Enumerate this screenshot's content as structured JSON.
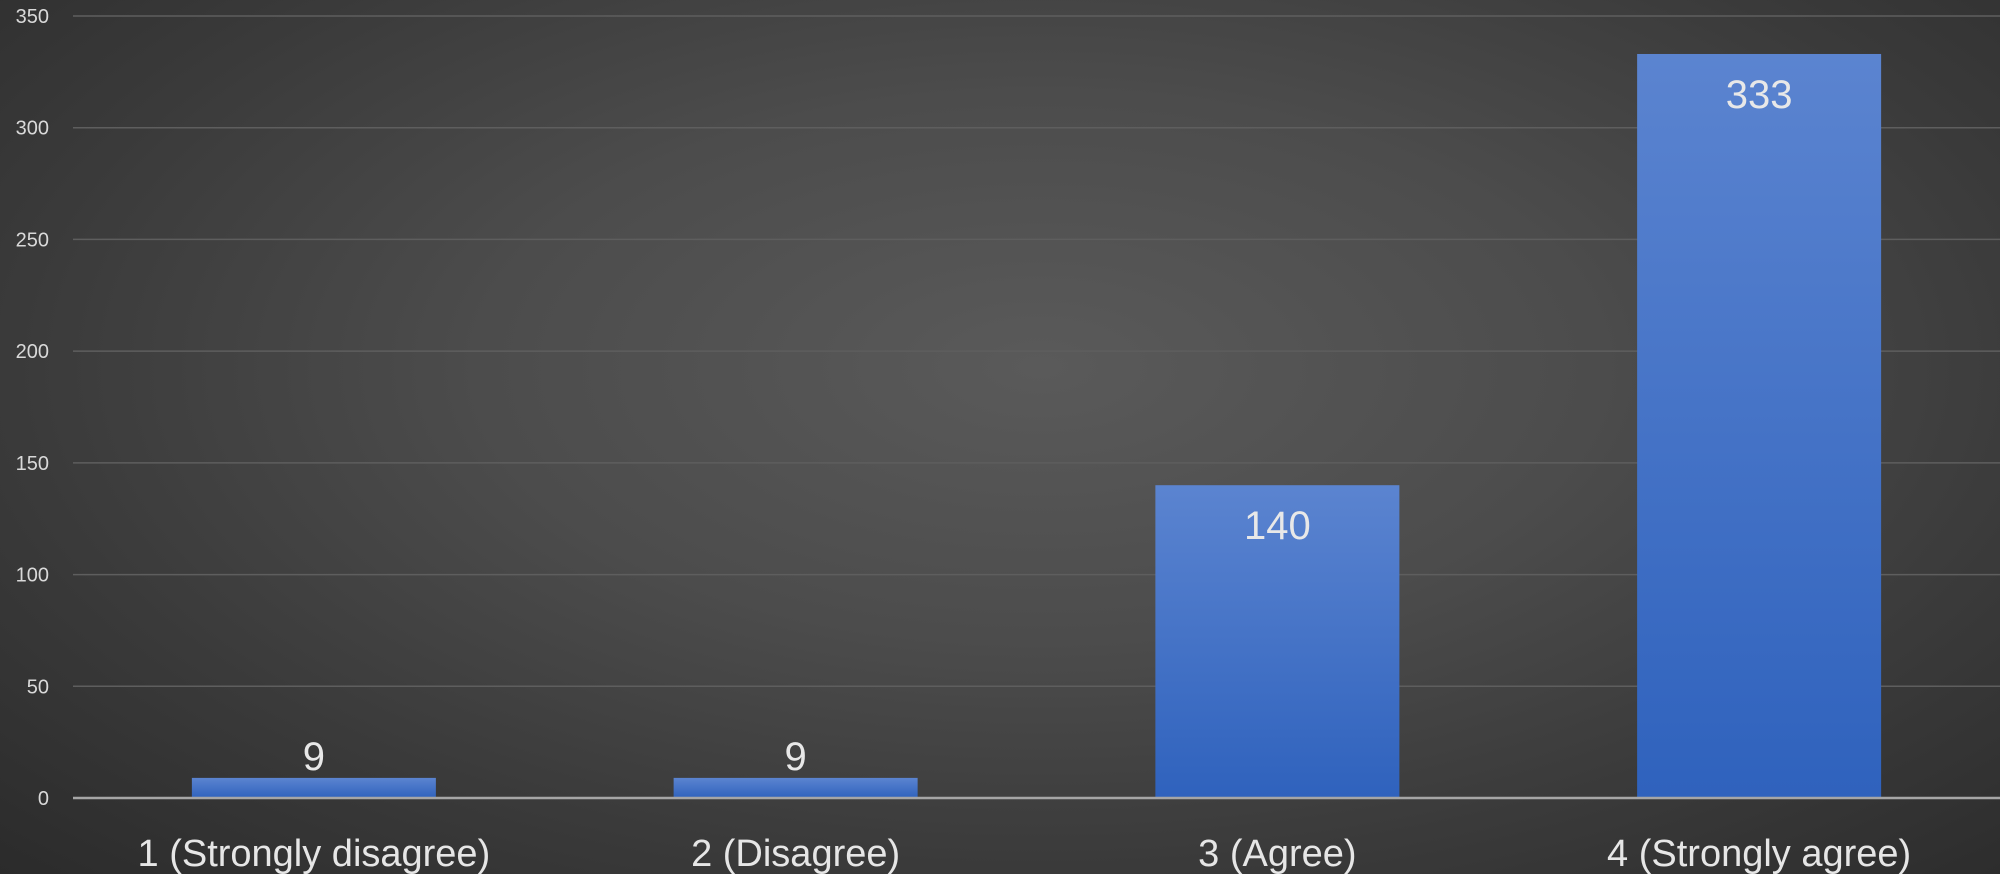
{
  "chart_data": {
    "type": "bar",
    "categories": [
      "1 (Strongly disagree)",
      "2 (Disagree)",
      "3 (Agree)",
      "4 (Strongly agree)"
    ],
    "values": [
      9,
      9,
      140,
      333
    ],
    "data_labels": [
      "9",
      "9",
      "140",
      "333"
    ],
    "title": "",
    "xlabel": "",
    "ylabel": "",
    "ylim": [
      0,
      350
    ],
    "yticks": [
      0,
      50,
      100,
      150,
      200,
      250,
      300,
      350
    ],
    "ytick_labels": [
      "0",
      "50",
      "100",
      "150",
      "200",
      "250",
      "300",
      "350"
    ],
    "grid": true,
    "legend": false,
    "colors": {
      "bar_top": "#5b84d0",
      "bar_bottom": "#2f62bd",
      "gridline": "#5e5e5e",
      "axis": "#a6a6a6",
      "background_center": "#5a5a5a",
      "background_edge": "#2b2b2b"
    }
  }
}
